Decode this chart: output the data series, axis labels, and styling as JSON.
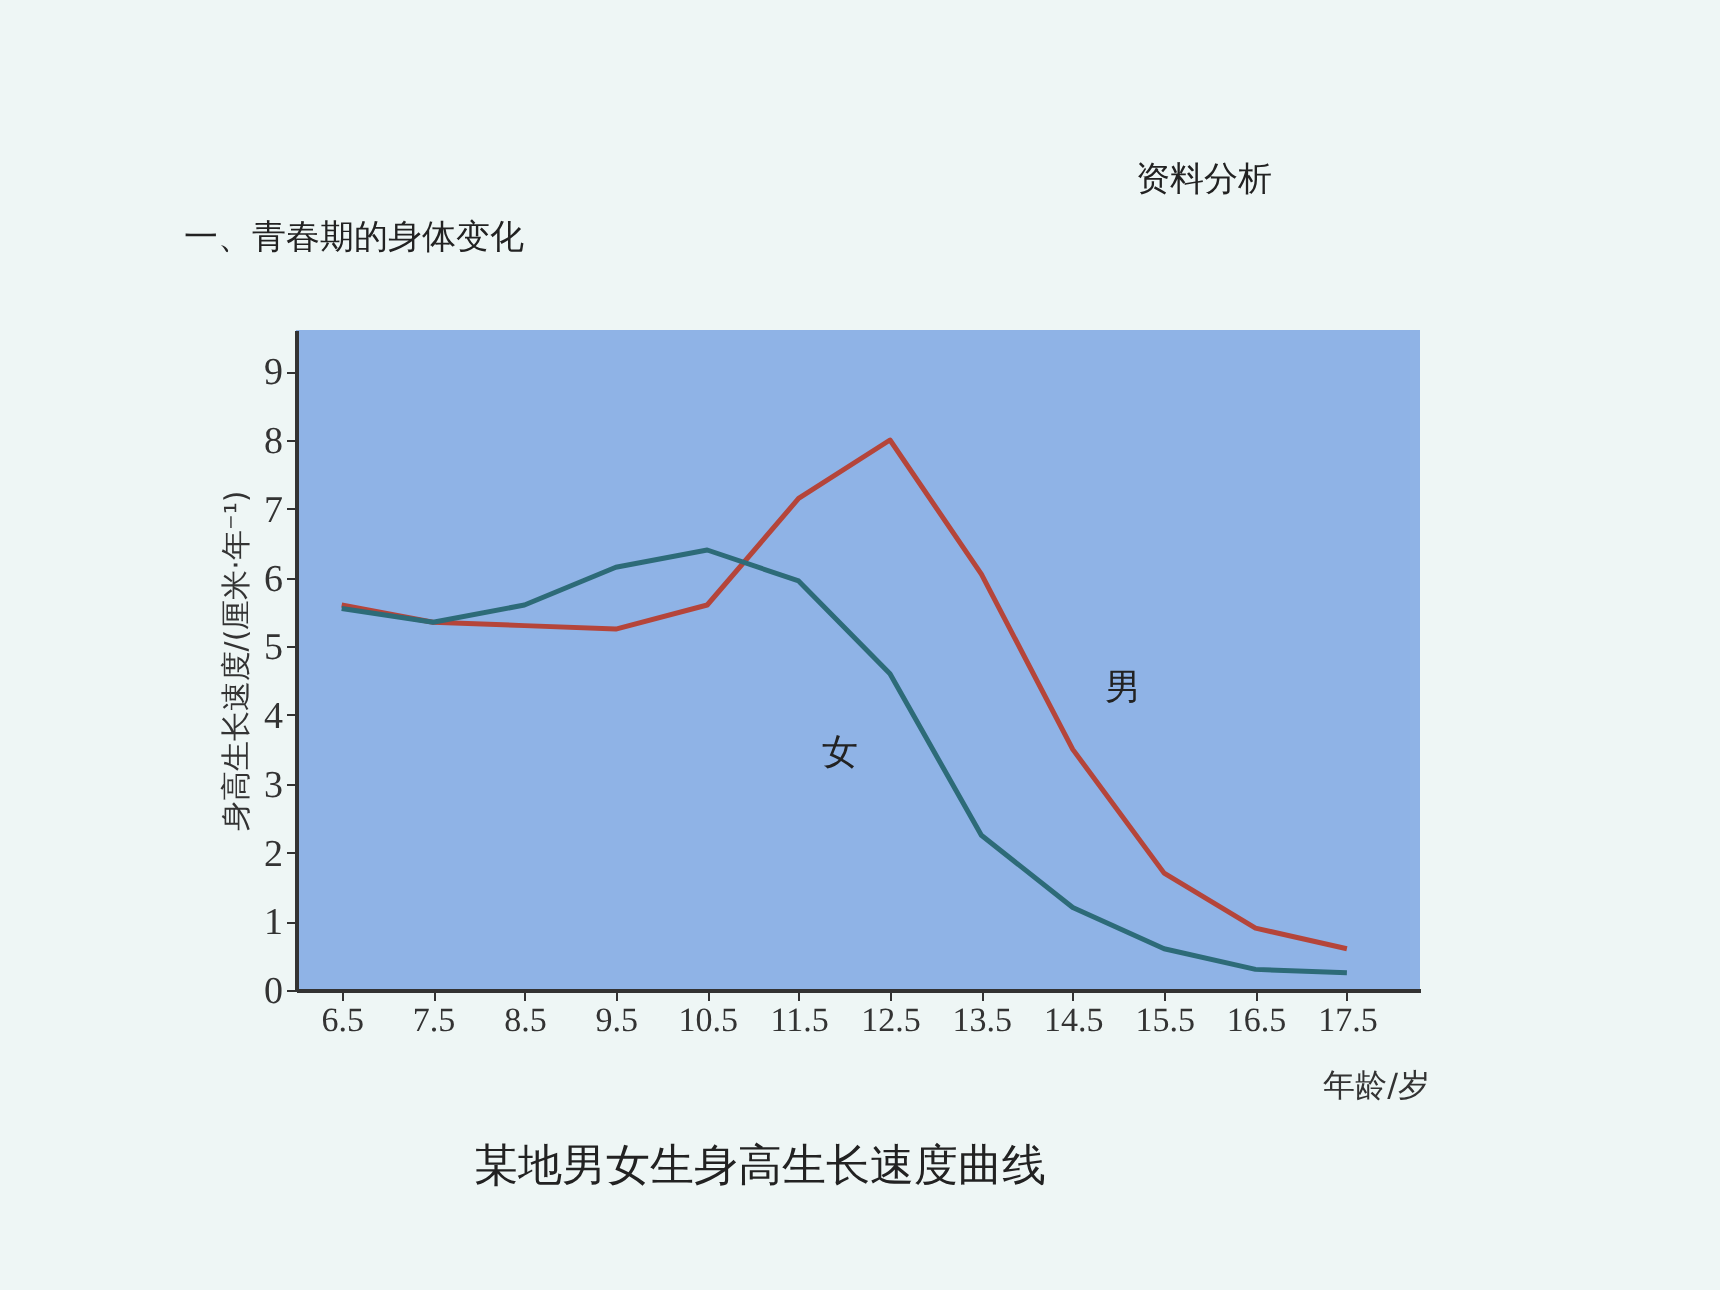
{
  "chart_data": {
    "type": "line",
    "title": "某地男女生身高生长速度曲线",
    "annotations": [
      "资料分析",
      "一、青春期的身体变化"
    ],
    "xlabel": "年龄/岁",
    "ylabel": "身高生长速度/(厘米·年⁻¹)",
    "x": [
      6.5,
      7.5,
      8.5,
      9.5,
      10.5,
      11.5,
      12.5,
      13.5,
      14.5,
      15.5,
      16.5,
      17.5
    ],
    "series": [
      {
        "name": "男",
        "color": "#b5453a",
        "values": [
          5.6,
          5.35,
          5.3,
          5.25,
          5.6,
          7.15,
          8.0,
          6.05,
          3.5,
          1.7,
          0.9,
          0.6
        ]
      },
      {
        "name": "女",
        "color": "#2d6b78",
        "values": [
          5.55,
          5.35,
          5.6,
          6.15,
          6.4,
          5.95,
          4.6,
          2.25,
          1.2,
          0.6,
          0.3,
          0.25
        ]
      }
    ],
    "xlim": [
      6.0,
      18.3
    ],
    "ylim": [
      0,
      9.6
    ],
    "xticks": [
      6.5,
      7.5,
      8.5,
      9.5,
      10.5,
      11.5,
      12.5,
      13.5,
      14.5,
      15.5,
      16.5,
      17.5
    ],
    "yticks": [
      0,
      1,
      2,
      3,
      4,
      5,
      6,
      7,
      8,
      9
    ],
    "grid": false,
    "legend": false,
    "marker": "none",
    "line_style": "solid"
  }
}
